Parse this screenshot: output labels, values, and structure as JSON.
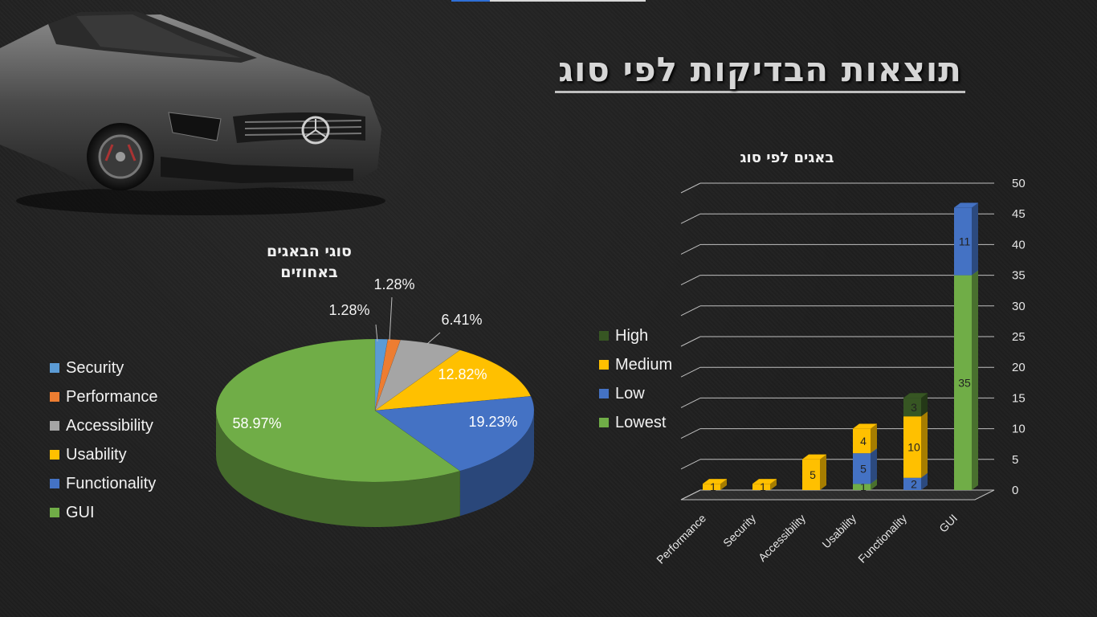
{
  "page": {
    "title": "תוצאות הבדיקות לפי סוג"
  },
  "pie": {
    "title_line1": "סוגי הבאגים",
    "title_line2": "באחוזים",
    "legend": [
      {
        "label": "Security",
        "color": "#5b9bd5"
      },
      {
        "label": "Performance",
        "color": "#ed7d31"
      },
      {
        "label": "Accessibility",
        "color": "#a5a5a5"
      },
      {
        "label": "Usability",
        "color": "#ffc000"
      },
      {
        "label": "Functionality",
        "color": "#4472c4"
      },
      {
        "label": "GUI",
        "color": "#70ad47"
      }
    ]
  },
  "bar": {
    "title": "באגים לפי סוג",
    "legend": [
      {
        "label": "High",
        "color": "#375623"
      },
      {
        "label": "Medium",
        "color": "#ffc000"
      },
      {
        "label": "Low",
        "color": "#4472c4"
      },
      {
        "label": "Lowest",
        "color": "#70ad47"
      }
    ]
  },
  "chart_data": [
    {
      "type": "pie",
      "title": "סוגי הבאגים באחוזים",
      "categories": [
        "Security",
        "Performance",
        "Accessibility",
        "Usability",
        "Functionality",
        "GUI"
      ],
      "values": [
        1.28,
        1.28,
        6.41,
        12.82,
        19.23,
        58.97
      ],
      "data_labels": [
        "1.28%",
        "1.28%",
        "6.41%",
        "12.82%",
        "19.23%",
        "58.97%"
      ],
      "colors": [
        "#5b9bd5",
        "#ed7d31",
        "#a5a5a5",
        "#ffc000",
        "#4472c4",
        "#70ad47"
      ],
      "legend_position": "left",
      "style": "3d"
    },
    {
      "type": "bar",
      "stacked": true,
      "style": "3d",
      "title": "באגים לפי סוג",
      "categories": [
        "Performance",
        "Security",
        "Accessibility",
        "Usability",
        "Functionality",
        "GUI"
      ],
      "series": [
        {
          "name": "Lowest",
          "color": "#70ad47",
          "values": [
            0,
            0,
            0,
            1,
            0,
            35
          ]
        },
        {
          "name": "Low",
          "color": "#4472c4",
          "values": [
            0,
            0,
            0,
            5,
            2,
            11
          ]
        },
        {
          "name": "Medium",
          "color": "#ffc000",
          "values": [
            1,
            1,
            5,
            4,
            10,
            0
          ]
        },
        {
          "name": "High",
          "color": "#375623",
          "values": [
            0,
            0,
            0,
            0,
            3,
            0
          ]
        }
      ],
      "ylim": [
        0,
        50
      ],
      "yticks": [
        0,
        5,
        10,
        15,
        20,
        25,
        30,
        35,
        40,
        45,
        50
      ],
      "y_axis_side": "right",
      "legend_position": "left",
      "grid": true
    }
  ]
}
